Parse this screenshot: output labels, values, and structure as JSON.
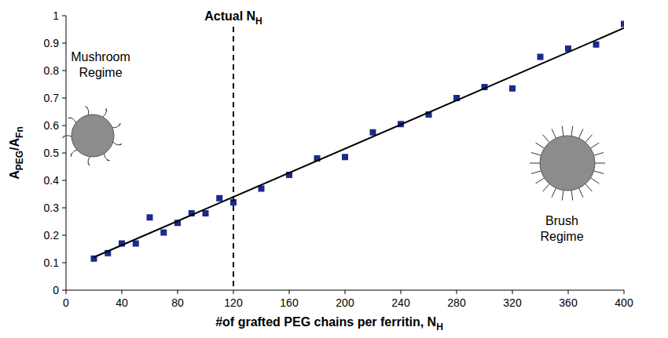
{
  "chart_data": {
    "type": "scatter",
    "xlabel": [
      {
        "text": "#of grafted PEG chains per ferritin, N"
      },
      {
        "text": "H",
        "sub": true
      }
    ],
    "ylabel": [
      {
        "text": "A"
      },
      {
        "text": "PEG",
        "sub": true
      },
      {
        "text": "/A"
      },
      {
        "text": "Fn",
        "sub": true
      }
    ],
    "xlim": [
      0,
      400
    ],
    "xticks": [
      0,
      40,
      80,
      120,
      160,
      200,
      240,
      280,
      320,
      360,
      400
    ],
    "ylim": [
      0,
      1
    ],
    "yticks": [
      0,
      0.1,
      0.2,
      0.3,
      0.4,
      0.5,
      0.6,
      0.7,
      0.8,
      0.9,
      1
    ],
    "grid": false,
    "series": [
      {
        "type": "scatter",
        "marker": "square",
        "color": "#1c2a8c",
        "x": [
          20,
          30,
          40,
          50,
          60,
          70,
          80,
          90,
          100,
          110,
          120,
          140,
          160,
          180,
          200,
          220,
          240,
          260,
          280,
          300,
          320,
          340,
          360,
          380,
          400
        ],
        "values": [
          0.115,
          0.135,
          0.17,
          0.17,
          0.265,
          0.21,
          0.245,
          0.28,
          0.28,
          0.335,
          0.32,
          0.37,
          0.42,
          0.48,
          0.485,
          0.575,
          0.605,
          0.64,
          0.7,
          0.74,
          0.735,
          0.85,
          0.88,
          0.895,
          0.97
        ]
      },
      {
        "type": "line",
        "line_style": "solid",
        "color": "#000000",
        "x": [
          20,
          400
        ],
        "values": [
          0.12,
          0.955
        ]
      }
    ],
    "annotations": [
      {
        "x": 120,
        "line_style": "dashed",
        "text": [
          {
            "text": "Actual N"
          },
          {
            "text": "H",
            "sub": true
          }
        ]
      },
      {
        "lines": [
          "Mushroom",
          "Regime"
        ]
      },
      {
        "lines": [
          "Brush",
          "Regime"
        ]
      }
    ]
  }
}
